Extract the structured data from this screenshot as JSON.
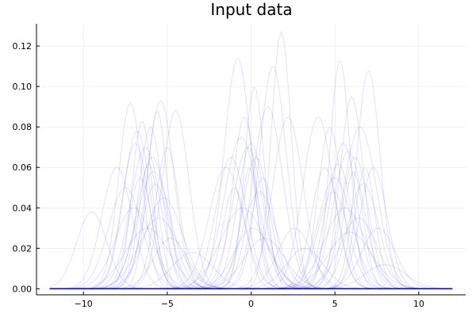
{
  "chart_data": {
    "type": "line",
    "title": "Input data",
    "xlabel": "",
    "ylabel": "",
    "xlim": [
      -12.8,
      12.8
    ],
    "ylim": [
      -0.003,
      0.131
    ],
    "x_ticks": [
      -10,
      -5,
      0,
      5,
      10
    ],
    "x_tick_labels": [
      "−10",
      "−5",
      "0",
      "5",
      "10"
    ],
    "y_ticks": [
      0.0,
      0.02,
      0.04,
      0.06,
      0.08,
      0.1,
      0.12
    ],
    "y_tick_labels": [
      "0.00",
      "0.02",
      "0.04",
      "0.06",
      "0.08",
      "0.10",
      "0.12"
    ],
    "grid": true,
    "legend": "none",
    "x_range": [
      -12,
      12
    ],
    "series_color": "#0000ff",
    "series_opacity": 0.12,
    "series_form": "gaussian",
    "series": [
      {
        "mean": -9.5,
        "sd": 0.9,
        "peak": 0.038
      },
      {
        "mean": -8.0,
        "sd": 0.9,
        "peak": 0.06
      },
      {
        "mean": -7.2,
        "sd": 0.7,
        "peak": 0.092
      },
      {
        "mean": -7.5,
        "sd": 1.0,
        "peak": 0.05
      },
      {
        "mean": -6.8,
        "sd": 0.8,
        "peak": 0.078
      },
      {
        "mean": -6.5,
        "sd": 0.6,
        "peak": 0.083
      },
      {
        "mean": -6.3,
        "sd": 0.9,
        "peak": 0.07
      },
      {
        "mean": -6.0,
        "sd": 0.7,
        "peak": 0.08
      },
      {
        "mean": -5.8,
        "sd": 1.0,
        "peak": 0.058
      },
      {
        "mean": -5.6,
        "sd": 0.6,
        "peak": 0.088
      },
      {
        "mean": -5.4,
        "sd": 0.8,
        "peak": 0.093
      },
      {
        "mean": -5.2,
        "sd": 1.1,
        "peak": 0.045
      },
      {
        "mean": -5.0,
        "sd": 0.7,
        "peak": 0.07
      },
      {
        "mean": -4.5,
        "sd": 0.8,
        "peak": 0.088
      },
      {
        "mean": -6.2,
        "sd": 1.3,
        "peak": 0.03
      },
      {
        "mean": -7.0,
        "sd": 1.1,
        "peak": 0.04
      },
      {
        "mean": -5.9,
        "sd": 0.9,
        "peak": 0.065
      },
      {
        "mean": -6.6,
        "sd": 0.7,
        "peak": 0.055
      },
      {
        "mean": -5.5,
        "sd": 1.2,
        "peak": 0.035
      },
      {
        "mean": -4.8,
        "sd": 1.0,
        "peak": 0.025
      },
      {
        "mean": -6.9,
        "sd": 0.8,
        "peak": 0.072
      },
      {
        "mean": -6.1,
        "sd": 0.6,
        "peak": 0.062
      },
      {
        "mean": -5.7,
        "sd": 0.8,
        "peak": 0.052
      },
      {
        "mean": -3.5,
        "sd": 1.2,
        "peak": 0.018
      },
      {
        "mean": -1.5,
        "sd": 1.0,
        "peak": 0.06
      },
      {
        "mean": -1.2,
        "sd": 0.9,
        "peak": 0.065
      },
      {
        "mean": -0.8,
        "sd": 0.8,
        "peak": 0.114
      },
      {
        "mean": -0.6,
        "sd": 1.0,
        "peak": 0.075
      },
      {
        "mean": -0.4,
        "sd": 0.7,
        "peak": 0.085
      },
      {
        "mean": -0.2,
        "sd": 0.9,
        "peak": 0.07
      },
      {
        "mean": 0.0,
        "sd": 0.8,
        "peak": 0.072
      },
      {
        "mean": 0.2,
        "sd": 0.6,
        "peak": 0.1
      },
      {
        "mean": 0.3,
        "sd": 0.8,
        "peak": 0.065
      },
      {
        "mean": 0.5,
        "sd": 1.0,
        "peak": 0.048
      },
      {
        "mean": 0.7,
        "sd": 0.7,
        "peak": 0.055
      },
      {
        "mean": 1.0,
        "sd": 0.9,
        "peak": 0.09
      },
      {
        "mean": 1.3,
        "sd": 0.8,
        "peak": 0.11
      },
      {
        "mean": 1.8,
        "sd": 0.6,
        "peak": 0.127
      },
      {
        "mean": 2.2,
        "sd": 0.9,
        "peak": 0.085
      },
      {
        "mean": -0.5,
        "sd": 1.3,
        "peak": 0.04
      },
      {
        "mean": 0.1,
        "sd": 1.1,
        "peak": 0.03
      },
      {
        "mean": -1.0,
        "sd": 0.7,
        "peak": 0.05
      },
      {
        "mean": 0.8,
        "sd": 1.2,
        "peak": 0.025
      },
      {
        "mean": -0.1,
        "sd": 0.5,
        "peak": 0.06
      },
      {
        "mean": 2.6,
        "sd": 1.0,
        "peak": 0.03
      },
      {
        "mean": 4.0,
        "sd": 0.9,
        "peak": 0.085
      },
      {
        "mean": 4.4,
        "sd": 0.8,
        "peak": 0.06
      },
      {
        "mean": 4.7,
        "sd": 0.7,
        "peak": 0.08
      },
      {
        "mean": 5.0,
        "sd": 1.0,
        "peak": 0.055
      },
      {
        "mean": 5.3,
        "sd": 0.6,
        "peak": 0.113
      },
      {
        "mean": 5.5,
        "sd": 0.8,
        "peak": 0.072
      },
      {
        "mean": 5.8,
        "sd": 0.9,
        "peak": 0.068
      },
      {
        "mean": 6.0,
        "sd": 0.7,
        "peak": 0.095
      },
      {
        "mean": 6.2,
        "sd": 0.8,
        "peak": 0.065
      },
      {
        "mean": 6.5,
        "sd": 1.0,
        "peak": 0.08
      },
      {
        "mean": 6.8,
        "sd": 0.6,
        "peak": 0.06
      },
      {
        "mean": 7.0,
        "sd": 0.7,
        "peak": 0.108
      },
      {
        "mean": 7.3,
        "sd": 0.8,
        "peak": 0.06
      },
      {
        "mean": 5.6,
        "sd": 1.2,
        "peak": 0.04
      },
      {
        "mean": 6.4,
        "sd": 1.1,
        "peak": 0.035
      },
      {
        "mean": 4.9,
        "sd": 0.9,
        "peak": 0.048
      },
      {
        "mean": 6.1,
        "sd": 0.6,
        "peak": 0.058
      },
      {
        "mean": 5.9,
        "sd": 1.3,
        "peak": 0.028
      },
      {
        "mean": 7.6,
        "sd": 1.0,
        "peak": 0.03
      },
      {
        "mean": 5.2,
        "sd": 0.8,
        "peak": 0.062
      },
      {
        "mean": 6.7,
        "sd": 0.9,
        "peak": 0.052
      },
      {
        "mean": 3.2,
        "sd": 1.1,
        "peak": 0.02
      },
      {
        "mean": 8.0,
        "sd": 1.2,
        "peak": 0.012
      }
    ]
  }
}
